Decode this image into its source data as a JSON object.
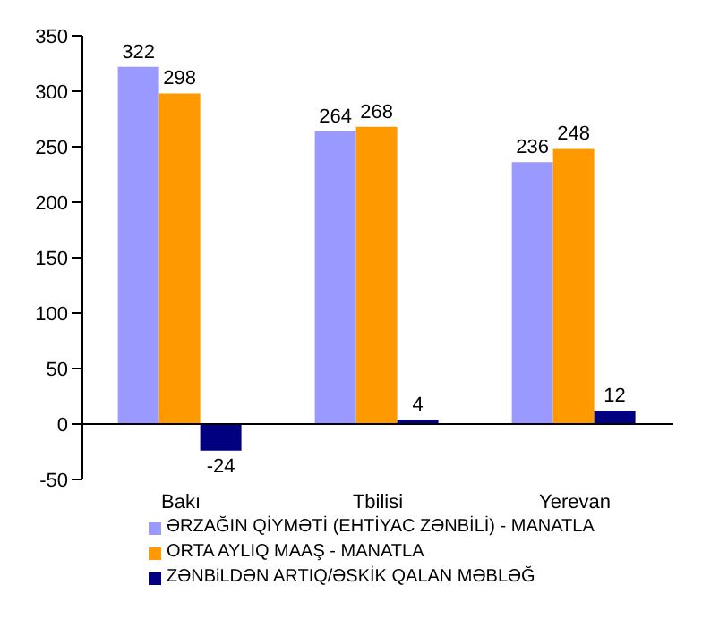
{
  "chart_data": {
    "type": "bar",
    "categories": [
      "Bakı",
      "Tbilisi",
      "Yerevan"
    ],
    "series": [
      {
        "name": "ƏRZAĞIN QİYMƏTİ (EHTİYAC ZƏNBİLİ) - MANATLA",
        "color": "#9999ff",
        "values": [
          322,
          264,
          236
        ]
      },
      {
        "name": "ORTA AYLIQ MAAŞ - MANATLA",
        "color": "#ff9900",
        "values": [
          298,
          268,
          248
        ]
      },
      {
        "name": "ZƏNBiLDƏN ARTIQ/ƏSKİK QALAN MƏBLƏĞ",
        "color": "#000080",
        "values": [
          -24,
          4,
          12
        ]
      }
    ],
    "ylim": [
      -50,
      350
    ],
    "yticks": [
      -50,
      0,
      50,
      100,
      150,
      200,
      250,
      300,
      350
    ],
    "data_labels": true,
    "legend": "bottom"
  }
}
